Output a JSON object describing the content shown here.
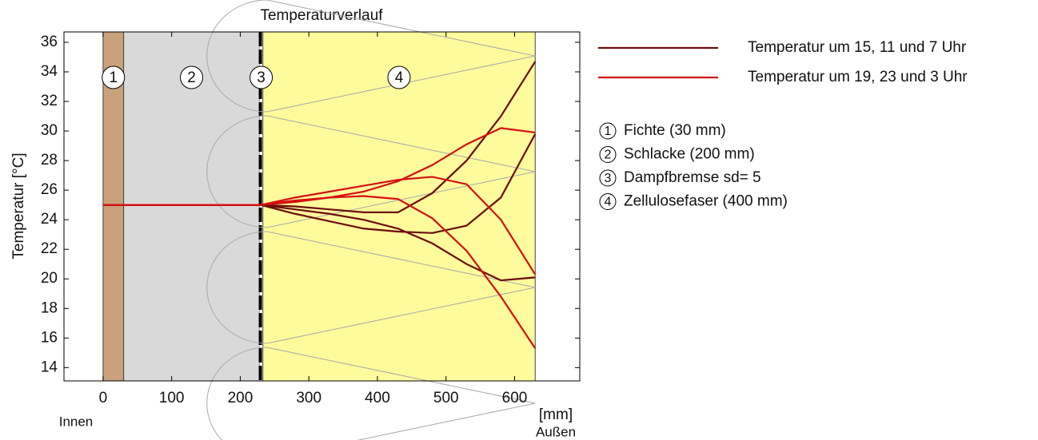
{
  "chart_data": {
    "type": "line",
    "title": "Temperaturverlauf",
    "y_label": "Temperatur [°C]",
    "x_label": "[mm]",
    "inner_label": "Innen",
    "outer_label": "Außen",
    "xlim": [
      -57,
      695
    ],
    "ylim": [
      13.1,
      36.7
    ],
    "xticks": [
      0,
      100,
      200,
      300,
      400,
      500,
      600
    ],
    "yticks": [
      14,
      16,
      18,
      20,
      22,
      24,
      26,
      28,
      30,
      32,
      34,
      36
    ],
    "x": [
      0,
      30,
      230,
      280,
      330,
      380,
      430,
      480,
      530,
      580,
      630
    ],
    "series": [
      {
        "name": "Temperatur um 15, 11 und 7 Uhr",
        "color": "#6b0c0c",
        "values": [
          [
            25,
            25,
            25,
            24.9,
            24.7,
            24.5,
            24.5,
            25.8,
            28.0,
            31.0,
            34.7
          ],
          [
            25,
            25,
            25,
            24.4,
            23.9,
            23.4,
            23.2,
            23.1,
            23.6,
            25.5,
            29.8
          ],
          [
            25,
            25,
            25,
            24.7,
            24.4,
            24.0,
            23.4,
            22.4,
            21.0,
            19.9,
            20.1
          ]
        ]
      },
      {
        "name": "Temperatur um 19, 23 und 3 Uhr",
        "color": "#d41010",
        "values": [
          [
            25,
            25,
            25,
            25.3,
            25.5,
            25.6,
            25.4,
            24.1,
            21.9,
            18.8,
            15.3
          ],
          [
            25,
            25,
            25,
            25.5,
            25.9,
            26.3,
            26.7,
            26.9,
            26.4,
            24.0,
            20.3
          ],
          [
            25,
            25,
            25,
            25.2,
            25.5,
            25.9,
            26.6,
            27.7,
            29.1,
            30.2,
            29.9
          ]
        ]
      }
    ],
    "layers": [
      {
        "label": "1",
        "name": "Fichte (30 mm)",
        "start": 0,
        "end": 30,
        "color": "#c9a17b"
      },
      {
        "label": "2",
        "name": "Schlacke (200 mm)",
        "start": 30,
        "end": 228,
        "color": "#d9d9d9"
      },
      {
        "label": "3",
        "name": "Dampfbremse sd= 5",
        "start": 228,
        "end": 233,
        "color": "#000000"
      },
      {
        "label": "4",
        "name": "Zellulosefaser (400 mm)",
        "start": 233,
        "end": 630,
        "color": "#fdfb9c"
      }
    ]
  }
}
